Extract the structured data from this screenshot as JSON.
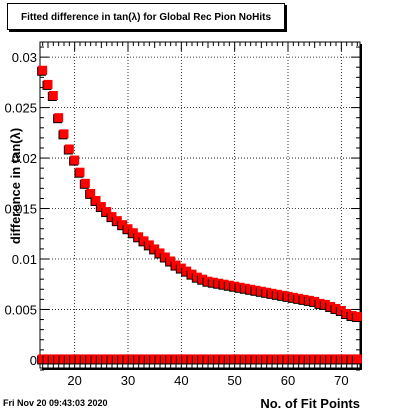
{
  "chart_data": {
    "type": "scatter",
    "title": "Fitted difference in tan(λ) for Global Rec Pion NoHits",
    "xlabel": "No. of Fit Points",
    "ylabel": "difference in tan(λ)",
    "xlim": [
      13.5,
      73.5
    ],
    "ylim": [
      -0.0008,
      0.0315
    ],
    "x_ticks": [
      20,
      30,
      40,
      50,
      60,
      70
    ],
    "x_tick_labels": [
      "20",
      "30",
      "40",
      "50",
      "60",
      "70"
    ],
    "y_ticks": [
      0,
      0.005,
      0.01,
      0.015,
      0.02,
      0.025,
      0.03
    ],
    "y_tick_labels": [
      "0",
      "0.005",
      "0.01",
      "0.015",
      "0.02",
      "0.025",
      "0.03"
    ],
    "grid": true,
    "series": [
      {
        "color": "#ff0000",
        "x": [
          14,
          15,
          16,
          17,
          18,
          19,
          20,
          21,
          22,
          23,
          24,
          25,
          26,
          27,
          28,
          29,
          30,
          31,
          32,
          33,
          34,
          35,
          36,
          37,
          38,
          39,
          40,
          41,
          42,
          43,
          44,
          45,
          46,
          47,
          48,
          49,
          50,
          51,
          52,
          53,
          54,
          55,
          56,
          57,
          58,
          59,
          60,
          61,
          62,
          63,
          64,
          65,
          66,
          67,
          68,
          69,
          70,
          71,
          72,
          73
        ],
        "y": [
          0.0287,
          0.0273,
          0.0262,
          0.024,
          0.0224,
          0.0209,
          0.0198,
          0.0186,
          0.0175,
          0.0165,
          0.0158,
          0.0152,
          0.0147,
          0.0142,
          0.0138,
          0.0134,
          0.013,
          0.0126,
          0.0122,
          0.0118,
          0.0114,
          0.011,
          0.0106,
          0.0102,
          0.0098,
          0.0094,
          0.0091,
          0.0088,
          0.0085,
          0.0082,
          0.008,
          0.0078,
          0.0077,
          0.0076,
          0.0075,
          0.0074,
          0.0073,
          0.0072,
          0.0071,
          0.007,
          0.0069,
          0.0068,
          0.0067,
          0.0066,
          0.0065,
          0.0064,
          0.0063,
          0.0062,
          0.0061,
          0.006,
          0.0059,
          0.0058,
          0.0056,
          0.0055,
          0.0053,
          0.0051,
          0.0049,
          0.0046,
          0.0044,
          0.0043
        ]
      },
      {
        "color": "#ff0000",
        "x": [
          14,
          15,
          16,
          17,
          18,
          19,
          20,
          21,
          22,
          23,
          24,
          25,
          26,
          27,
          28,
          29,
          30,
          31,
          32,
          33,
          34,
          35,
          36,
          37,
          38,
          39,
          40,
          41,
          42,
          43,
          44,
          45,
          46,
          47,
          48,
          49,
          50,
          51,
          52,
          53,
          54,
          55,
          56,
          57,
          58,
          59,
          60,
          61,
          62,
          63,
          64,
          65,
          66,
          67,
          68,
          69,
          70,
          71,
          72,
          73
        ],
        "y": [
          0.0001,
          0.0001,
          0.0001,
          0.0001,
          0.0001,
          0.0001,
          0.0001,
          0.0001,
          0.0001,
          0.0001,
          0.0001,
          0.0001,
          0.0001,
          0.0001,
          0.0001,
          0.0001,
          0.0001,
          0.0001,
          0.0001,
          0.0001,
          0.0001,
          0.0001,
          0.0001,
          0.0001,
          0.0001,
          0.0001,
          0.0001,
          0.0001,
          0.0001,
          0.0001,
          0.0001,
          0.0001,
          0.0001,
          0.0001,
          0.0001,
          0.0001,
          0.0001,
          0.0001,
          0.0001,
          0.0001,
          0.0001,
          0.0001,
          0.0001,
          0.0001,
          0.0001,
          0.0001,
          0.0001,
          0.0001,
          0.0001,
          0.0001,
          0.0001,
          0.0001,
          0.0001,
          0.0001,
          0.0001,
          0.0001,
          0.0001,
          0.0001,
          0.0001,
          0.0001
        ]
      }
    ]
  },
  "timestamp": "Fri Nov 20 09:43:03 2020"
}
